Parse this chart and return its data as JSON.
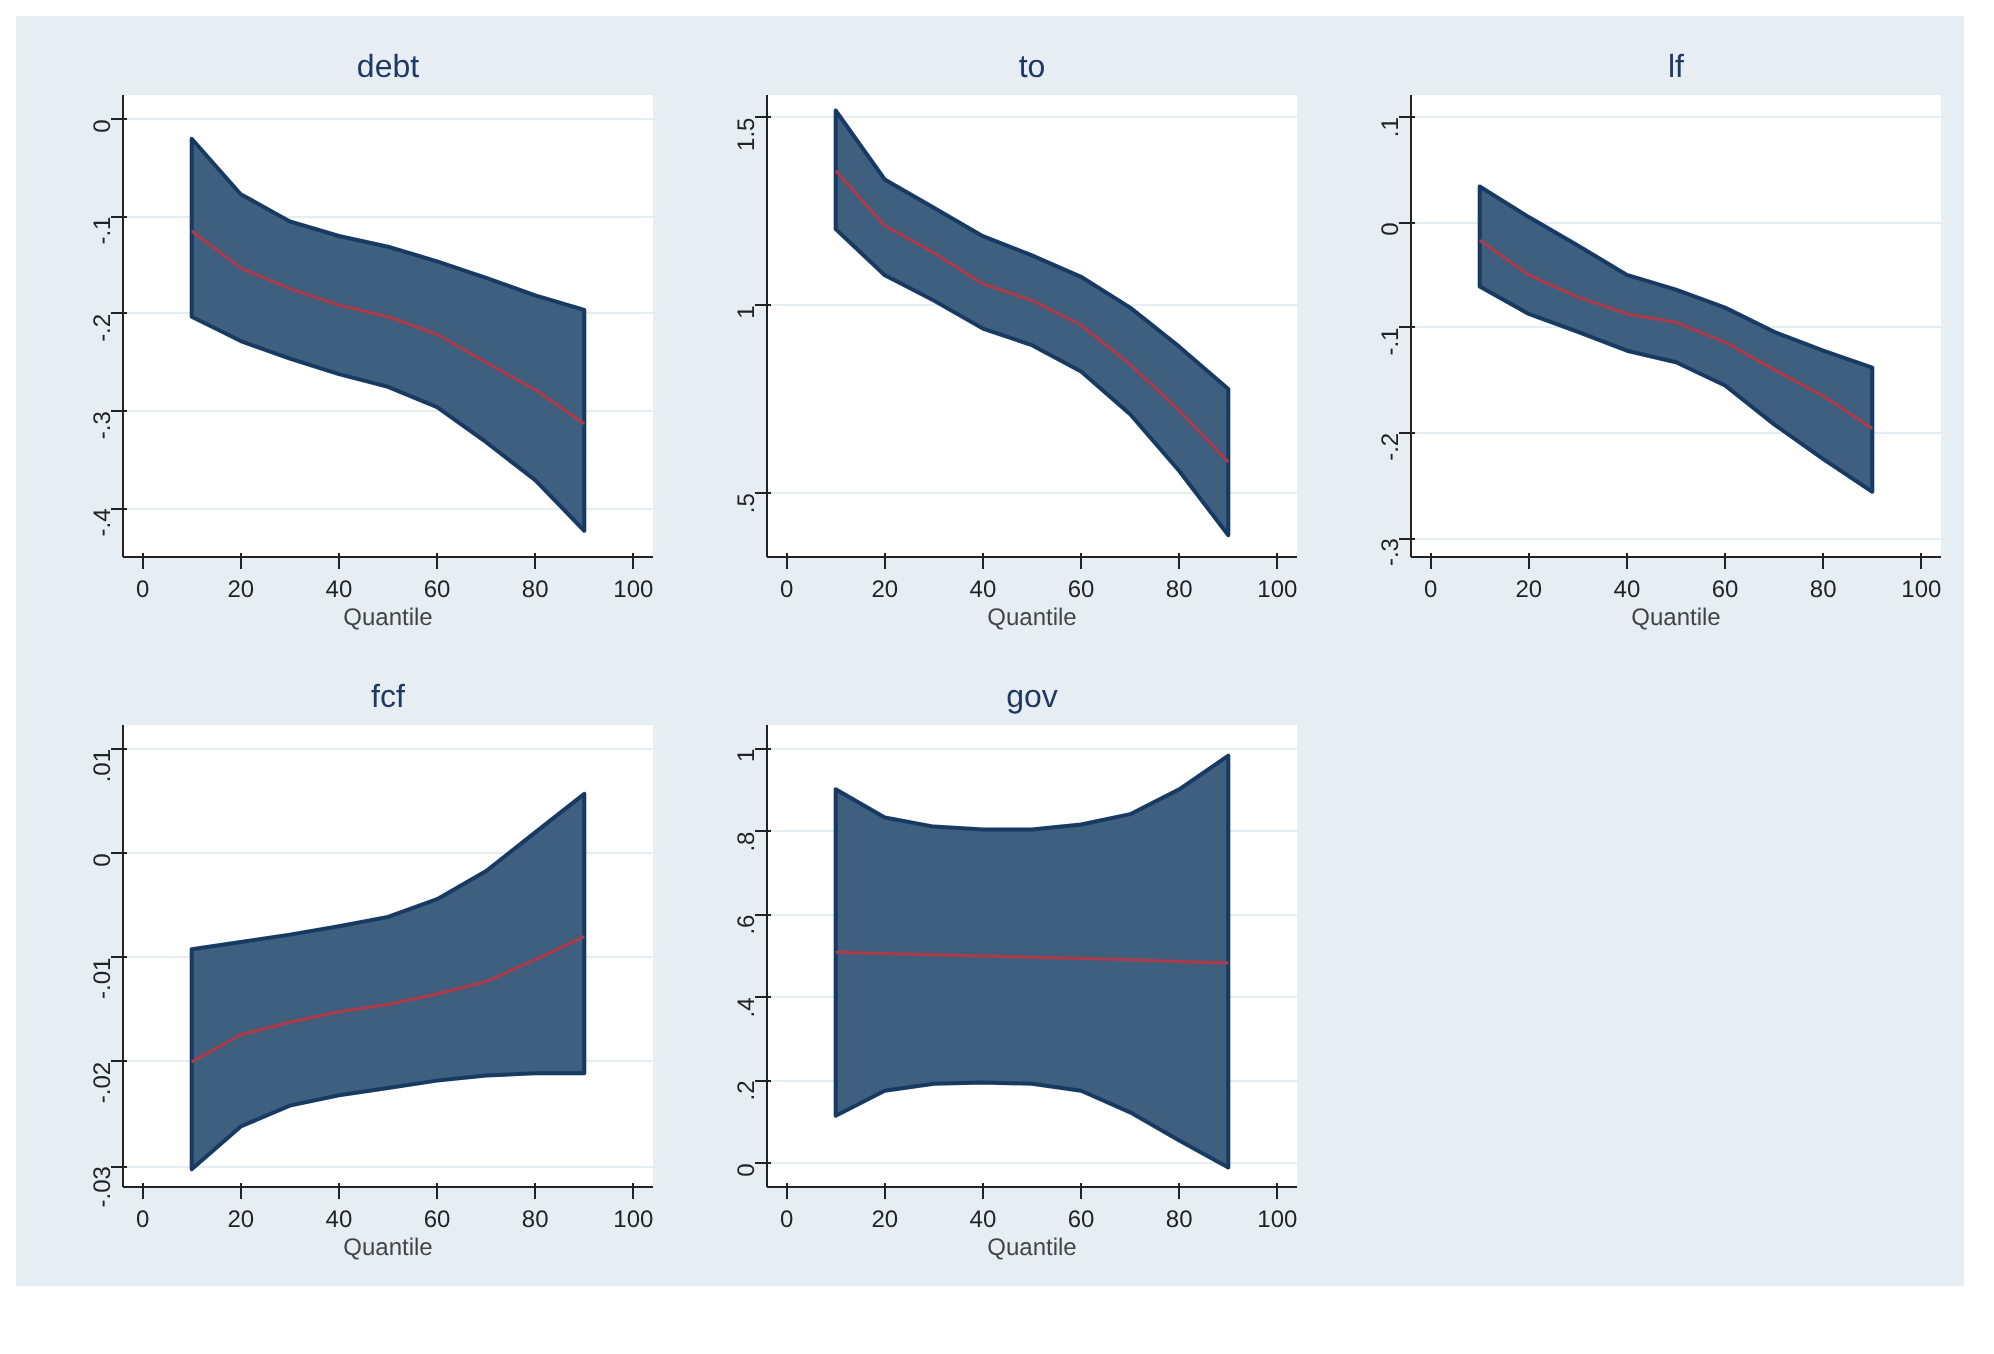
{
  "chart_data": [
    {
      "type": "line",
      "title": "debt",
      "xlabel": "Quantile",
      "x": [
        10,
        20,
        30,
        40,
        50,
        60,
        70,
        80,
        90
      ],
      "grid": "y",
      "xlim": [
        -4,
        104
      ],
      "ylim": [
        -0.45,
        0.025
      ],
      "xticks": [
        0,
        20,
        40,
        60,
        80,
        100
      ],
      "yticks": [
        {
          "value": -0.4,
          "label": "-.4"
        },
        {
          "value": -0.3,
          "label": "-.3"
        },
        {
          "value": -0.2,
          "label": "-.2"
        },
        {
          "value": -0.1,
          "label": "-.1"
        },
        0
      ],
      "series": [
        {
          "color": "#b03a48",
          "values": [
            -0.115,
            -0.153,
            -0.174,
            -0.191,
            -0.203,
            -0.221,
            -0.25,
            -0.278,
            -0.313
          ],
          "lower": [
            -0.203,
            -0.228,
            -0.246,
            -0.262,
            -0.275,
            -0.296,
            -0.332,
            -0.371,
            -0.423
          ],
          "upper": [
            -0.02,
            -0.077,
            -0.105,
            -0.12,
            -0.131,
            -0.146,
            -0.163,
            -0.181,
            -0.196
          ]
        }
      ]
    },
    {
      "type": "line",
      "title": "to",
      "xlabel": "Quantile",
      "x": [
        10,
        20,
        30,
        40,
        50,
        60,
        70,
        80,
        90
      ],
      "grid": "y",
      "xlim": [
        -4,
        104
      ],
      "ylim": [
        0.33,
        1.56
      ],
      "xticks": [
        0,
        20,
        40,
        60,
        80,
        100
      ],
      "yticks": [
        {
          "value": 0.5,
          "label": ".5"
        },
        1,
        1.5
      ],
      "series": [
        {
          "color": "#b03a48",
          "values": [
            1.358,
            1.212,
            1.14,
            1.057,
            1.013,
            0.947,
            0.843,
            0.72,
            0.583
          ],
          "lower": [
            1.203,
            1.08,
            1.013,
            0.938,
            0.894,
            0.824,
            0.71,
            0.559,
            0.388
          ],
          "upper": [
            1.519,
            1.335,
            1.26,
            1.184,
            1.133,
            1.076,
            0.994,
            0.89,
            0.777
          ]
        }
      ]
    },
    {
      "type": "line",
      "title": "lf",
      "xlabel": "Quantile",
      "x": [
        10,
        20,
        30,
        40,
        50,
        60,
        70,
        80,
        90
      ],
      "grid": "y",
      "xlim": [
        -4,
        104
      ],
      "ylim": [
        -0.318,
        0.121
      ],
      "xticks": [
        0,
        20,
        40,
        60,
        80,
        100
      ],
      "yticks": [
        {
          "value": -0.3,
          "label": "-.3"
        },
        {
          "value": -0.2,
          "label": "-.2"
        },
        {
          "value": -0.1,
          "label": "-.1"
        },
        0,
        {
          "value": 0.1,
          "label": ".1"
        }
      ],
      "series": [
        {
          "color": "#b03a48",
          "values": [
            -0.017,
            -0.05,
            -0.071,
            -0.087,
            -0.095,
            -0.114,
            -0.14,
            -0.165,
            -0.196
          ],
          "lower": [
            -0.061,
            -0.087,
            -0.104,
            -0.122,
            -0.133,
            -0.155,
            -0.192,
            -0.225,
            -0.256
          ],
          "upper": [
            0.034,
            0.005,
            -0.022,
            -0.05,
            -0.064,
            -0.081,
            -0.104,
            -0.122,
            -0.138
          ]
        }
      ]
    },
    {
      "type": "line",
      "title": "fcf",
      "xlabel": "Quantile",
      "x": [
        10,
        20,
        30,
        40,
        50,
        60,
        70,
        80,
        90
      ],
      "grid": "y",
      "xlim": [
        -4,
        104
      ],
      "ylim": [
        -0.032,
        0.0123
      ],
      "xticks": [
        0,
        20,
        40,
        60,
        80,
        100
      ],
      "yticks": [
        {
          "value": -0.03,
          "label": "-.03"
        },
        {
          "value": -0.02,
          "label": "-.02"
        },
        {
          "value": -0.01,
          "label": "-.01"
        },
        0,
        {
          "value": 0.01,
          "label": ".01"
        }
      ],
      "series": [
        {
          "color": "#b03a48",
          "values": [
            -0.02,
            -0.0174,
            -0.0162,
            -0.0152,
            -0.0145,
            -0.0135,
            -0.0123,
            -0.0102,
            -0.008
          ],
          "lower": [
            -0.0303,
            -0.0262,
            -0.0242,
            -0.0232,
            -0.0225,
            -0.0218,
            -0.0213,
            -0.0211,
            -0.0211
          ],
          "upper": [
            -0.0092,
            -0.0085,
            -0.0078,
            -0.007,
            -0.0061,
            -0.0044,
            -0.0017,
            0.002,
            0.0057
          ]
        }
      ]
    },
    {
      "type": "line",
      "title": "gov",
      "xlabel": "Quantile",
      "x": [
        10,
        20,
        30,
        40,
        50,
        60,
        70,
        80,
        90
      ],
      "grid": "y",
      "xlim": [
        -4,
        104
      ],
      "ylim": [
        -0.057,
        1.057
      ],
      "xticks": [
        0,
        20,
        40,
        60,
        80,
        100
      ],
      "yticks": [
        0,
        {
          "value": 0.2,
          "label": ".2"
        },
        {
          "value": 0.4,
          "label": ".4"
        },
        {
          "value": 0.6,
          "label": ".6"
        },
        {
          "value": 0.8,
          "label": ".8"
        },
        1
      ],
      "series": [
        {
          "color": "#b03a48",
          "values": [
            0.509,
            0.506,
            0.503,
            0.5,
            0.497,
            0.494,
            0.491,
            0.487,
            0.483
          ],
          "lower": [
            0.115,
            0.175,
            0.192,
            0.195,
            0.192,
            0.175,
            0.123,
            0.055,
            -0.01
          ],
          "upper": [
            0.902,
            0.834,
            0.812,
            0.805,
            0.805,
            0.817,
            0.842,
            0.902,
            0.983
          ]
        }
      ]
    }
  ]
}
